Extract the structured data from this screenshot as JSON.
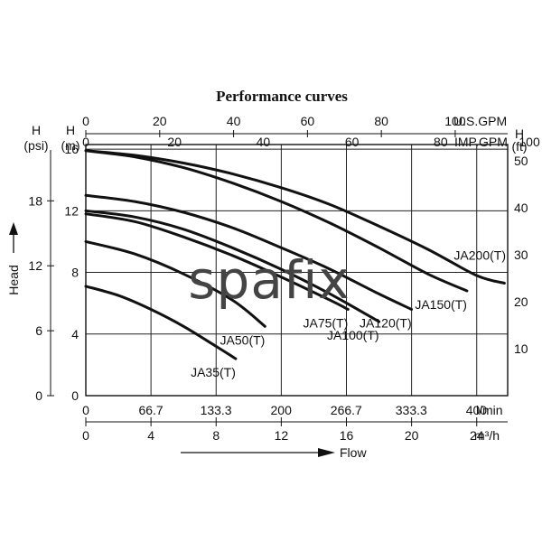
{
  "chart_data": {
    "type": "line",
    "title": "Performance curves",
    "axes": {
      "top_usgpm": {
        "label": "U.S.GPM",
        "ticks": [
          0,
          20,
          40,
          60,
          80,
          100
        ],
        "lim": [
          0,
          114.2
        ]
      },
      "top_impgpm": {
        "label": "IMP.GPM",
        "ticks": [
          "0",
          "20",
          "40",
          "60",
          "80",
          "100"
        ],
        "lim": [
          0,
          95.1
        ]
      },
      "left_psi": {
        "header": "H",
        "unit": "(psi)",
        "ticks": [
          "0",
          "6",
          "12",
          "18"
        ],
        "lim": [
          0,
          23.2
        ]
      },
      "left_m": {
        "header": "H",
        "unit": "(m)",
        "ticks": [
          0,
          4,
          8,
          12,
          16
        ],
        "lim": [
          0,
          16.3
        ]
      },
      "right_ft": {
        "header": "H",
        "unit": "(ft)",
        "ticks": [
          "10",
          "20",
          "30",
          "40",
          "50"
        ],
        "lim": [
          0,
          53.5
        ]
      },
      "bottom_lmin": {
        "label": "l/min",
        "ticks": [
          "0",
          "66.7",
          "133.3",
          "200",
          "266.7",
          "333.3",
          "400"
        ],
        "lim": [
          0,
          432
        ]
      },
      "bottom_m3h": {
        "label": "m³/h",
        "ticks": [
          "0",
          "4",
          "8",
          "12",
          "16",
          "20",
          "24"
        ],
        "lim": [
          0,
          25.9
        ]
      },
      "y_title": "Head",
      "x_title": "Flow"
    },
    "grid": true,
    "series": [
      {
        "name": "JA200(T)",
        "x": [
          0,
          3,
          6,
          9,
          12,
          15,
          18,
          21,
          24,
          25.7
        ],
        "y": [
          15.9,
          15.6,
          15.1,
          14.4,
          13.5,
          12.4,
          11.0,
          9.5,
          7.8,
          7.3
        ]
      },
      {
        "name": "JA150(T)",
        "x": [
          0,
          3,
          6,
          9,
          12,
          15,
          18,
          21,
          23.4
        ],
        "y": [
          15.9,
          15.5,
          14.8,
          13.8,
          12.6,
          11.2,
          9.6,
          7.9,
          6.8
        ]
      },
      {
        "name": "JA120(T)",
        "x": [
          0,
          3,
          6,
          9,
          12,
          15,
          18,
          20.0
        ],
        "y": [
          13.0,
          12.6,
          11.9,
          10.9,
          9.6,
          8.2,
          6.6,
          5.6
        ]
      },
      {
        "name": "JA100(T)",
        "x": [
          0,
          3,
          6,
          9,
          12,
          15,
          18.0
        ],
        "y": [
          12.0,
          11.6,
          10.8,
          9.6,
          8.2,
          6.6,
          4.8
        ]
      },
      {
        "name": "JA75(T)",
        "x": [
          0,
          3,
          6,
          9,
          12,
          15,
          16.1
        ],
        "y": [
          11.8,
          11.3,
          10.3,
          9.1,
          7.7,
          6.2,
          5.6
        ]
      },
      {
        "name": "JA50(T)",
        "x": [
          0,
          3,
          6,
          9,
          11.0
        ],
        "y": [
          10.0,
          9.2,
          7.9,
          6.2,
          4.5
        ]
      },
      {
        "name": "JA35(T)",
        "x": [
          0,
          2,
          4,
          6,
          8,
          9.2
        ],
        "y": [
          7.1,
          6.5,
          5.6,
          4.5,
          3.2,
          2.4
        ]
      }
    ]
  },
  "watermark": "spafix"
}
